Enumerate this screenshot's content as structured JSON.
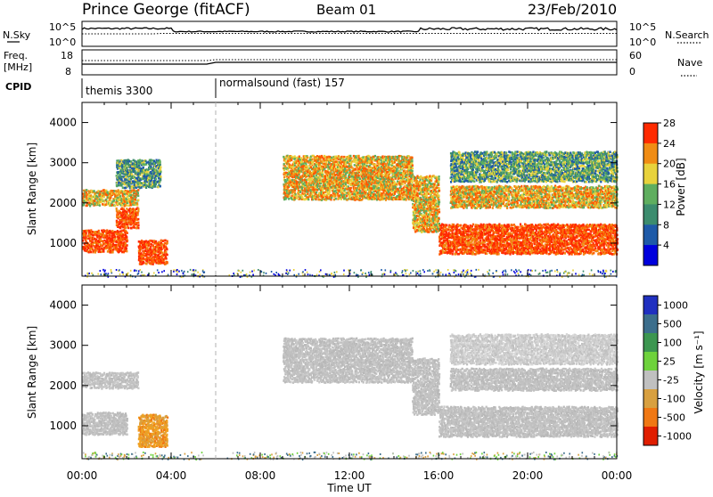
{
  "header": {
    "station": "Prince George (fitACF)",
    "beam": "Beam 01",
    "date": "23/Feb/2010"
  },
  "top_panels": {
    "nsky_label": "N.Sky",
    "nsky_top": "10^5",
    "nsky_bottom": "10^0",
    "nsearch_label": "N.Search",
    "nsearch_top": "10^5",
    "nsearch_bottom": "10^0",
    "freq_label": "Freq.",
    "freq_unit": "[MHz]",
    "freq_top": "18",
    "freq_bottom": "8",
    "nave_label": "Nave",
    "nave_top": "60",
    "nave_bottom": "0",
    "cpid_label": "CPID",
    "cpid_programs": [
      "themis 3300",
      "normalsound (fast) 157"
    ]
  },
  "chart_data": [
    {
      "type": "heatmap",
      "name": "power-panel",
      "ylabel": "Slant Range [km]",
      "xlabel": "",
      "x_ticks": [
        "00:00",
        "04:00",
        "08:00",
        "12:00",
        "16:00",
        "20:00",
        "00:00"
      ],
      "xlim_hours": [
        0,
        24
      ],
      "y_ticks": [
        1000,
        2000,
        3000,
        4000
      ],
      "ylim": [
        180,
        4500
      ],
      "colorbar": {
        "label": "Power [dB]",
        "ticks": [
          4,
          8,
          12,
          16,
          20,
          24,
          28
        ],
        "colors": [
          "#0000dd",
          "#1e5aa8",
          "#3c8c6e",
          "#5fae5f",
          "#e8d23c",
          "#f08c14",
          "#ff2a00"
        ]
      },
      "bands": [
        {
          "t0": 0.0,
          "t1": 2.0,
          "r0": 800,
          "r1": 1350,
          "level": "high"
        },
        {
          "t0": 1.5,
          "t1": 2.5,
          "r0": 1400,
          "r1": 1900,
          "level": "high"
        },
        {
          "t0": 2.5,
          "t1": 3.8,
          "r0": 500,
          "r1": 1100,
          "level": "high"
        },
        {
          "t0": 0.0,
          "t1": 2.5,
          "r0": 1950,
          "r1": 2350,
          "level": "mid"
        },
        {
          "t0": 1.5,
          "t1": 3.5,
          "r0": 2400,
          "r1": 3100,
          "level": "low"
        },
        {
          "t0": 9.0,
          "t1": 14.8,
          "r0": 2100,
          "r1": 3200,
          "level": "mid"
        },
        {
          "t0": 14.8,
          "t1": 16.0,
          "r0": 1300,
          "r1": 2700,
          "level": "mid"
        },
        {
          "t0": 16.0,
          "t1": 24.0,
          "r0": 750,
          "r1": 1500,
          "level": "high"
        },
        {
          "t0": 16.5,
          "t1": 24.0,
          "r0": 1900,
          "r1": 2450,
          "level": "mid"
        },
        {
          "t0": 16.5,
          "t1": 24.0,
          "r0": 2550,
          "r1": 3300,
          "level": "low"
        }
      ]
    },
    {
      "type": "heatmap",
      "name": "velocity-panel",
      "ylabel": "Slant Range [km]",
      "xlabel": "Time UT",
      "x_ticks": [
        "00:00",
        "04:00",
        "08:00",
        "12:00",
        "16:00",
        "20:00",
        "00:00"
      ],
      "xlim_hours": [
        0,
        24
      ],
      "y_ticks": [
        1000,
        2000,
        3000,
        4000
      ],
      "ylim": [
        180,
        4500
      ],
      "colorbar": {
        "label": "Velocity [m s⁻¹]",
        "ticks": [
          1000,
          500,
          100,
          25,
          -25,
          -100,
          -500,
          -1000
        ],
        "colors": [
          "#2030c0",
          "#3c6e8c",
          "#3c9650",
          "#6ed23c",
          "#c0c0c0",
          "#d8a040",
          "#f07814",
          "#e01e00"
        ]
      },
      "bands": [
        {
          "t0": 0.0,
          "t1": 2.0,
          "r0": 800,
          "r1": 1350,
          "level": "gray"
        },
        {
          "t0": 2.5,
          "t1": 3.8,
          "r0": 500,
          "r1": 1300,
          "level": "orange"
        },
        {
          "t0": 0.0,
          "t1": 2.5,
          "r0": 1950,
          "r1": 2350,
          "level": "gray"
        },
        {
          "t0": 9.0,
          "t1": 14.8,
          "r0": 2100,
          "r1": 3200,
          "level": "gray"
        },
        {
          "t0": 14.8,
          "t1": 16.0,
          "r0": 1300,
          "r1": 2700,
          "level": "gray"
        },
        {
          "t0": 16.0,
          "t1": 24.0,
          "r0": 750,
          "r1": 1500,
          "level": "gray"
        },
        {
          "t0": 16.5,
          "t1": 24.0,
          "r0": 1900,
          "r1": 2450,
          "level": "gray"
        },
        {
          "t0": 16.5,
          "t1": 24.0,
          "r0": 2550,
          "r1": 3300,
          "level": "lightgray"
        }
      ]
    }
  ]
}
